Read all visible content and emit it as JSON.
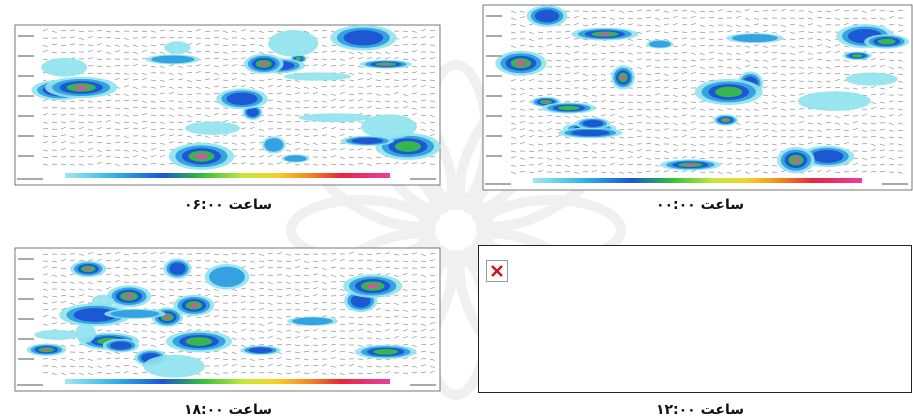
{
  "panels": [
    {
      "caption": "ساعت ۰۶:۰۰"
    },
    {
      "caption": "ساعت ۰۰:۰۰"
    },
    {
      "caption": "ساعت ۱۸:۰۰"
    },
    {
      "caption": "ساعت ۱۲:۰۰"
    }
  ]
}
